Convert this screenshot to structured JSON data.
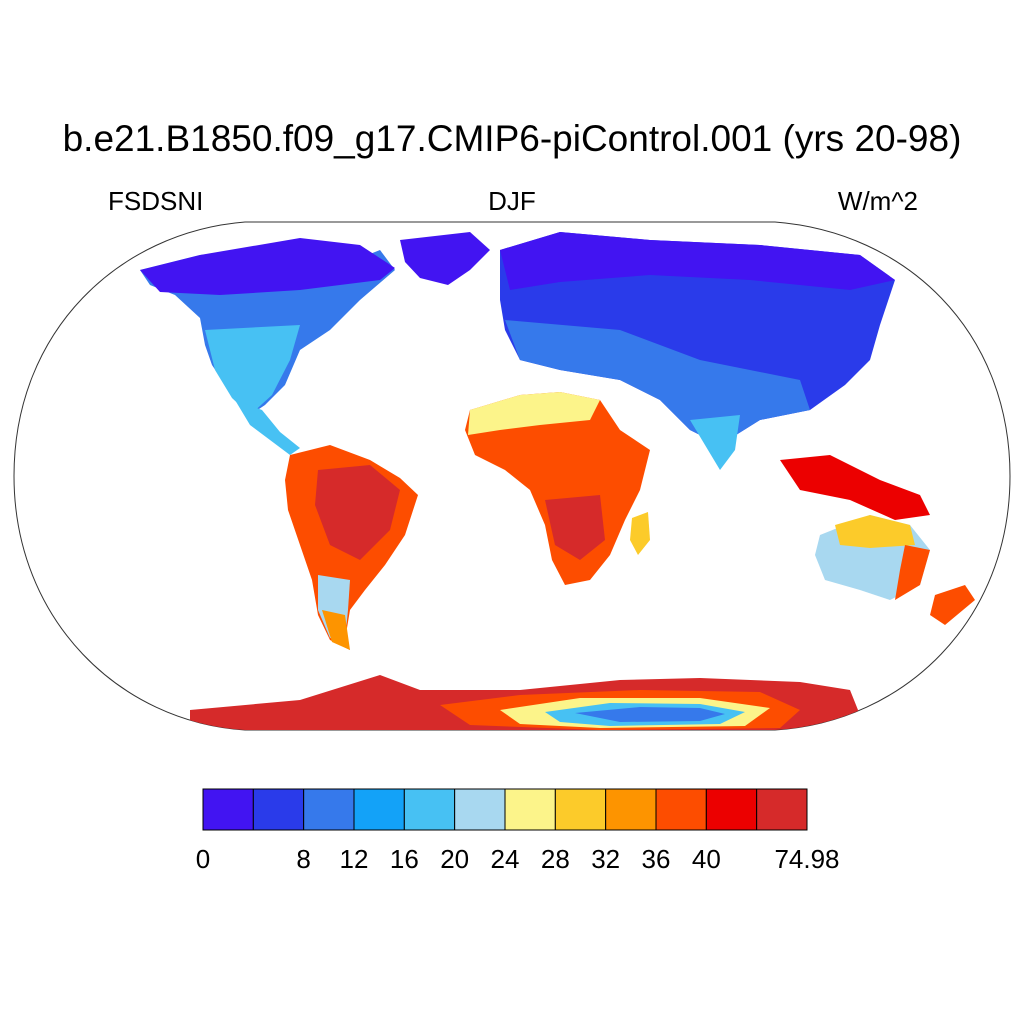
{
  "title": "b.e21.B1850.f09_g17.CMIP6-piControl.001 (yrs 20-98)",
  "left_label": "FSDSNI",
  "center_label": "DJF",
  "right_label": "W/m^2",
  "colorbar": {
    "colors": [
      "#4214f2",
      "#2a3bea",
      "#3679eb",
      "#13a2f8",
      "#47c1f3",
      "#a8d8f0",
      "#fcf48a",
      "#fccb2a",
      "#fd9400",
      "#fd4d00",
      "#ec0000",
      "#d62a2a"
    ],
    "labels": [
      "0",
      "8",
      "12",
      "16",
      "20",
      "24",
      "28",
      "32",
      "36",
      "40",
      "74.98"
    ],
    "label_slots": [
      0,
      2,
      3,
      4,
      5,
      6,
      7,
      8,
      9,
      10,
      12
    ]
  }
}
